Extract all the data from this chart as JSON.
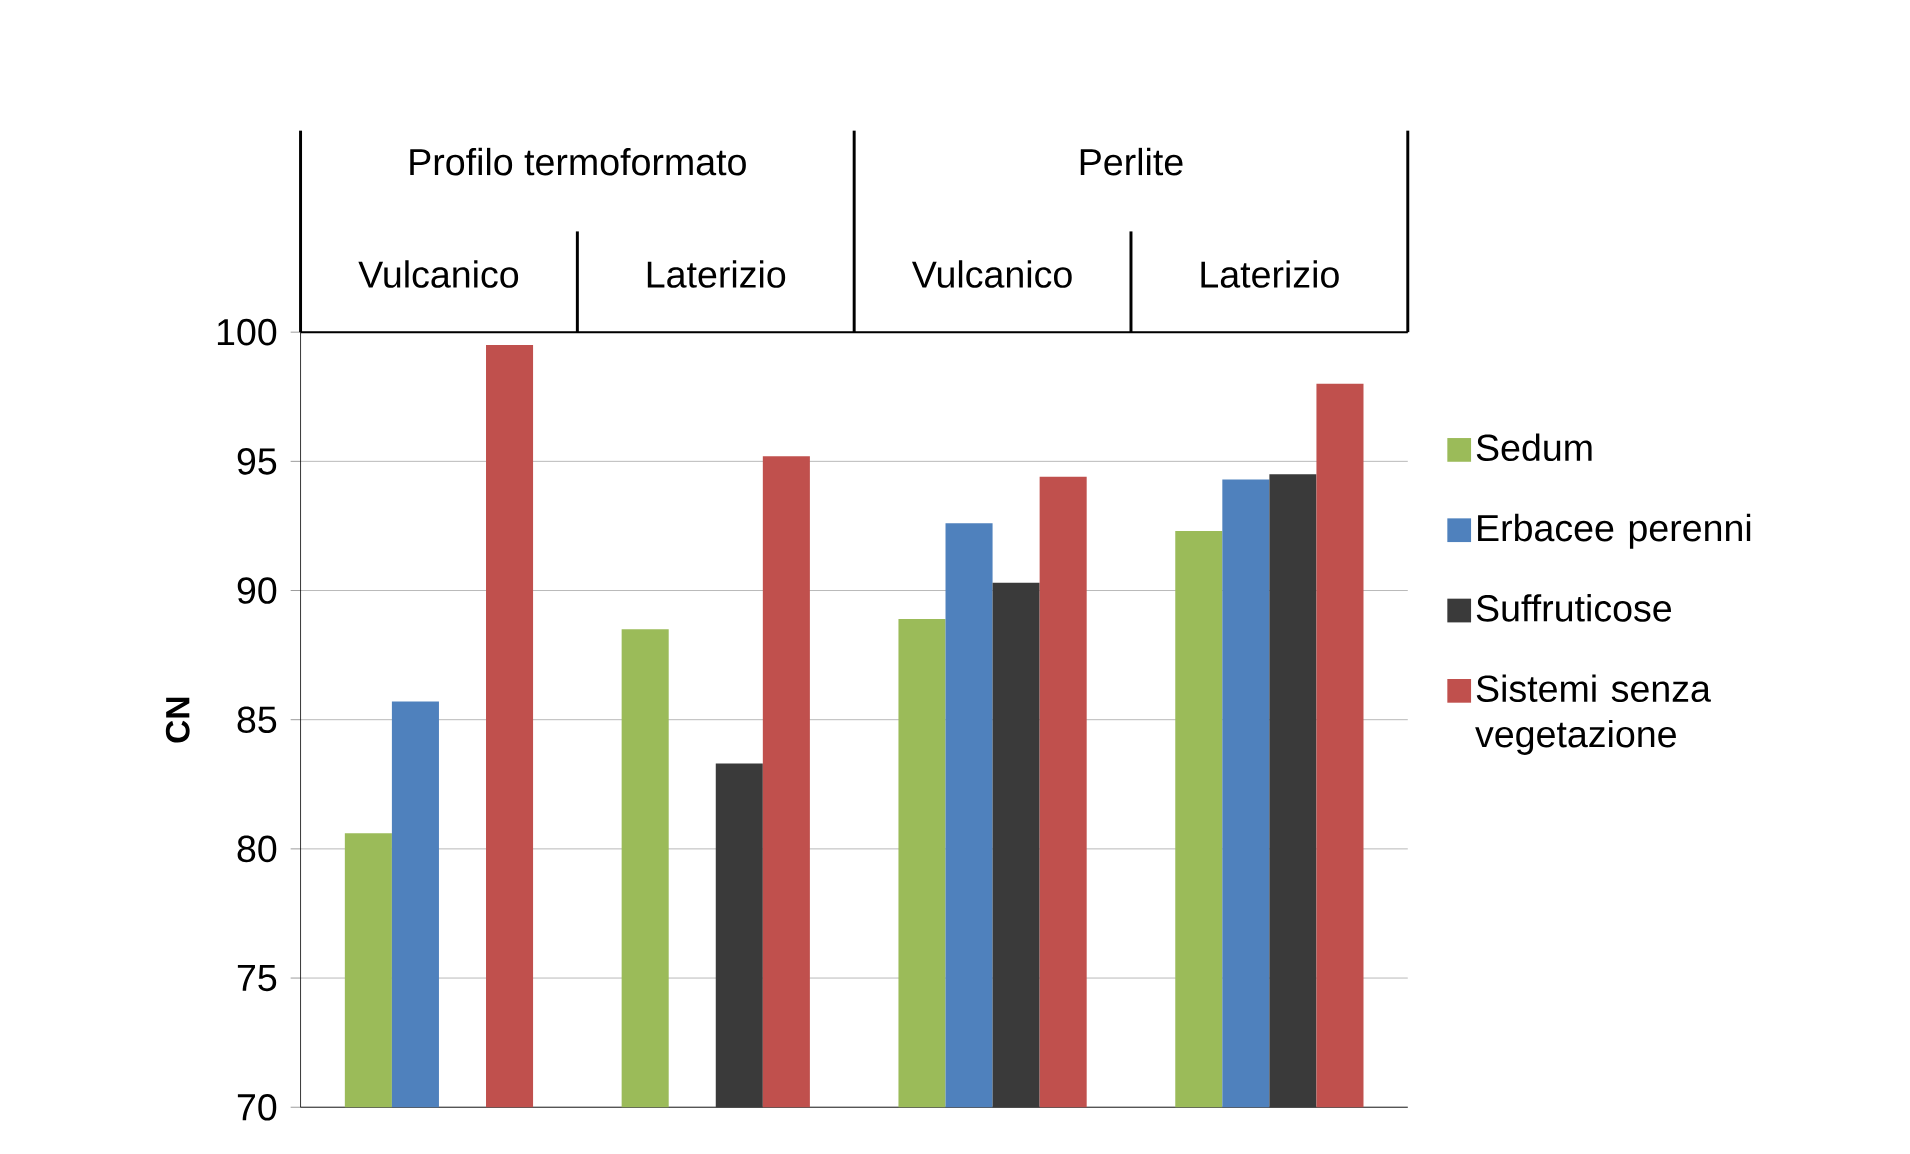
{
  "chart_data": {
    "type": "bar",
    "ylabel": "CN",
    "categories": [
      "Vulcanico",
      "Laterizio",
      "Vulcanico",
      "Laterizio"
    ],
    "annotations": [
      "Profilo termoformato",
      "Perlite"
    ],
    "series": [
      {
        "name": "Sedum",
        "color": "#9bbb59",
        "values": [
          80.6,
          88.5,
          88.9,
          92.3
        ]
      },
      {
        "name": "Erbacee perenni",
        "color": "#4f81bd",
        "values": [
          85.7,
          null,
          92.6,
          94.3
        ]
      },
      {
        "name": "Suffruticose",
        "color": "#3a3a3a",
        "values": [
          null,
          83.3,
          90.3,
          94.5
        ]
      },
      {
        "name": "Sistemi senza vegetazione",
        "color": "#c0504d",
        "values": [
          99.5,
          95.2,
          94.4,
          98.0
        ]
      }
    ],
    "ylim": [
      70,
      100
    ],
    "yticks": [
      70,
      75,
      80,
      85,
      90,
      95,
      100
    ],
    "grid": "y",
    "legend": "right"
  }
}
